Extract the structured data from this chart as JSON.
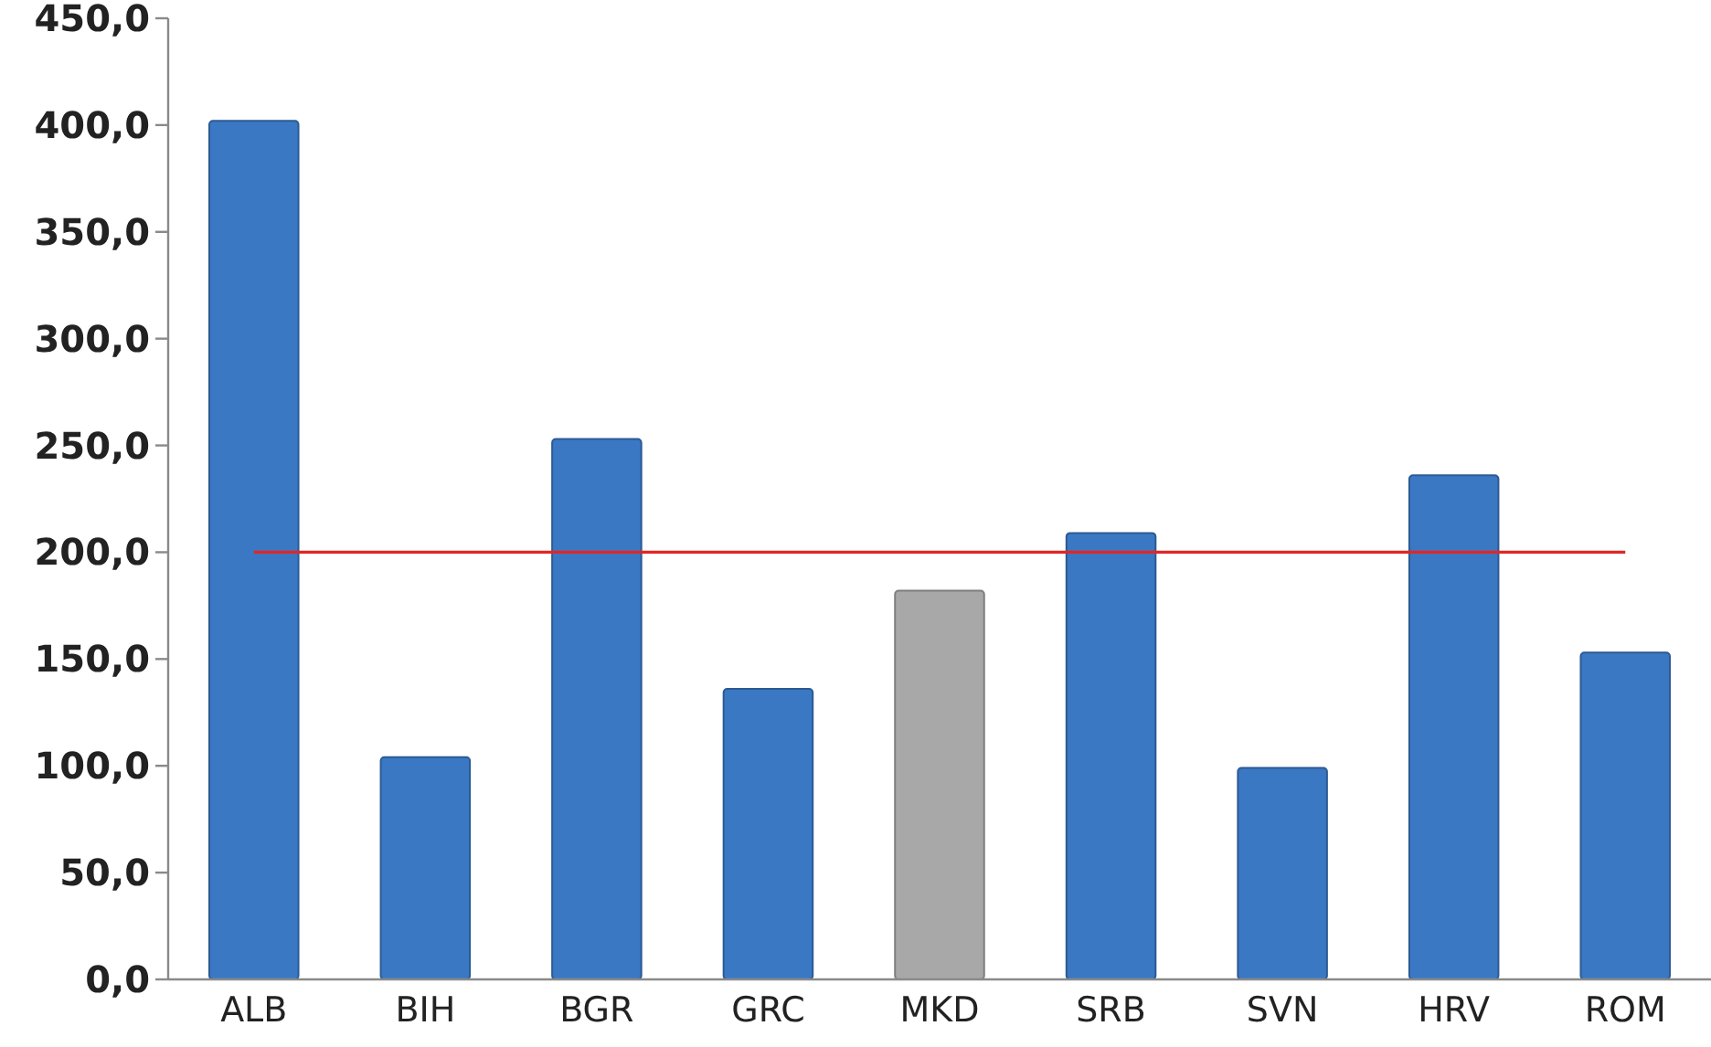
{
  "chart_data": {
    "type": "bar",
    "categories": [
      "ALB",
      "BIH",
      "BGR",
      "GRC",
      "MKD",
      "SRB",
      "SVN",
      "HRV",
      "ROM"
    ],
    "values": [
      402,
      104,
      253,
      136,
      182,
      209,
      99,
      236,
      153
    ],
    "colors": [
      "#3a78c4",
      "#3a78c4",
      "#3a78c4",
      "#3a78c4",
      "#a8a8a8",
      "#3a78c4",
      "#3a78c4",
      "#3a78c4",
      "#3a78c4"
    ],
    "ylim": [
      0,
      450
    ],
    "yticks": [
      {
        "value": 0,
        "label": "0,0"
      },
      {
        "value": 50,
        "label": "50,0"
      },
      {
        "value": 100,
        "label": "100,0"
      },
      {
        "value": 150,
        "label": "150,0"
      },
      {
        "value": 200,
        "label": "200,0"
      },
      {
        "value": 250,
        "label": "250,0"
      },
      {
        "value": 300,
        "label": "300,0"
      },
      {
        "value": 350,
        "label": "350,0"
      },
      {
        "value": 400,
        "label": "400,0"
      },
      {
        "value": 450,
        "label": "450,0"
      }
    ],
    "ref_lines": [
      {
        "axis": "y",
        "value": 200,
        "color": "#e02626"
      }
    ]
  }
}
